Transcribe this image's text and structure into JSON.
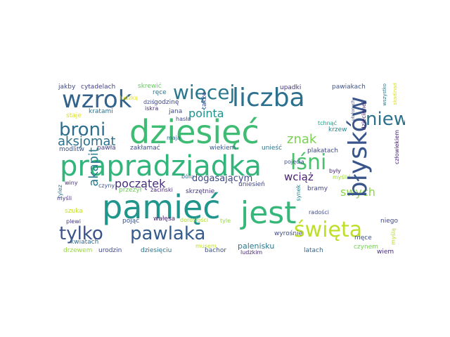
{
  "words": [
    {
      "text": "dziesięć",
      "color": "#3fbc73"
    },
    {
      "text": "prapradziadka",
      "color": "#31b57b"
    },
    {
      "text": "pamięć",
      "color": "#1f958b"
    },
    {
      "text": "jest",
      "color": "#35b779"
    },
    {
      "text": "wzrok",
      "color": "#33638d"
    },
    {
      "text": "liczba",
      "color": "#2d708e"
    },
    {
      "text": "więcej",
      "color": "#2a788e"
    },
    {
      "text": "błysków",
      "color": "#39558c"
    },
    {
      "text": "broni",
      "color": "#2e6e8e"
    },
    {
      "text": "lśni",
      "color": "#4ac16d"
    },
    {
      "text": "niewiadoma",
      "color": "#2d718e"
    },
    {
      "text": "tylko",
      "color": "#3b528b"
    },
    {
      "text": "pawlaka",
      "color": "#365c8d"
    },
    {
      "text": "święta",
      "color": "#bddf26"
    },
    {
      "text": "aksjomat",
      "color": "#2c728e"
    },
    {
      "text": "pointa",
      "color": "#21918c"
    },
    {
      "text": "znak",
      "color": "#7ad151"
    },
    {
      "text": "akapit",
      "color": "#297b8e"
    },
    {
      "text": "początek",
      "color": "#472f7d"
    },
    {
      "text": "dogasającym",
      "color": "#3e4989"
    },
    {
      "text": "wciąż",
      "color": "#482173"
    },
    {
      "text": "swych",
      "color": "#8bd646"
    },
    {
      "text": "palenisku",
      "color": "#2a788e"
    },
    {
      "text": "jakby",
      "color": "#3e4a89"
    },
    {
      "text": "cytadelach",
      "color": "#424086"
    },
    {
      "text": "skrewić",
      "color": "#65cb5e"
    },
    {
      "text": "upadki",
      "color": "#453882"
    },
    {
      "text": "pawiakach",
      "color": "#3b528b"
    },
    {
      "text": "ręce",
      "color": "#2c728e"
    },
    {
      "text": "godzinę",
      "color": "#3f4788"
    },
    {
      "text": "dziś",
      "color": "#3e4c8a"
    },
    {
      "text": "iskra",
      "color": "#472c7a"
    },
    {
      "text": "ludzką",
      "color": "#e5e419"
    },
    {
      "text": "staje",
      "color": "#dde318"
    },
    {
      "text": "kratami",
      "color": "#2c738e"
    },
    {
      "text": "jana",
      "color": "#3e4989"
    },
    {
      "text": "także",
      "color": "#3b528b"
    },
    {
      "text": "hasła",
      "color": "#404688"
    },
    {
      "text": "mają",
      "color": "#306a8e"
    },
    {
      "text": "krzew",
      "color": "#23898e"
    },
    {
      "text": "dziecinnej",
      "color": "#481f70"
    },
    {
      "text": "człowiekiem",
      "color": "#482475"
    },
    {
      "text": "modlitw",
      "color": "#3b528b"
    },
    {
      "text": "pawła",
      "color": "#433e85"
    },
    {
      "text": "zakłamać",
      "color": "#3e4c8a"
    },
    {
      "text": "wiekiem",
      "color": "#38588c"
    },
    {
      "text": "unieść",
      "color": "#2c728e"
    },
    {
      "text": "plakatach",
      "color": "#3f4788"
    },
    {
      "text": "winy",
      "color": "#472f7d"
    },
    {
      "text": "czyny",
      "color": "#3b528b"
    },
    {
      "text": "przeżył",
      "color": "#6ccd5a"
    },
    {
      "text": "bólu",
      "color": "#31678e"
    },
    {
      "text": "żaciński",
      "color": "#482878"
    },
    {
      "text": "skrzętnie",
      "color": "#46337f"
    },
    {
      "text": "uniesień",
      "color": "#3f4788"
    },
    {
      "text": "bramy",
      "color": "#404588"
    },
    {
      "text": "myślić",
      "color": "#a0da39"
    },
    {
      "text": "tylez",
      "color": "#2c728e"
    },
    {
      "text": "myśli",
      "color": "#46307e"
    },
    {
      "text": "szuka",
      "color": "#c8e020"
    },
    {
      "text": "pojąć",
      "color": "#3b528b"
    },
    {
      "text": "wałęsa",
      "color": "#482374"
    },
    {
      "text": "dorosłości",
      "color": "#addc30"
    },
    {
      "text": "tyle",
      "color": "#94d741"
    },
    {
      "text": "radości",
      "color": "#3e4989"
    },
    {
      "text": "pojęcia",
      "color": "#3b528b"
    },
    {
      "text": "były",
      "color": "#482677"
    },
    {
      "text": "synek",
      "color": "#25848e"
    },
    {
      "text": "tchnąć",
      "color": "#1fa287"
    },
    {
      "text": "męce",
      "color": "#3b528b"
    },
    {
      "text": "niego",
      "color": "#3f4788"
    },
    {
      "text": "plewi",
      "color": "#453882"
    },
    {
      "text": "kwiatach",
      "color": "#31688e"
    },
    {
      "text": "wyrośnie",
      "color": "#3e4a89"
    },
    {
      "text": "myślą",
      "color": "#b5de2b"
    },
    {
      "text": "drzewem",
      "color": "#98d83e"
    },
    {
      "text": "urodzin",
      "color": "#3f4788"
    },
    {
      "text": "dziesięciu",
      "color": "#2c728e"
    },
    {
      "text": "musem",
      "color": "#c2df23"
    },
    {
      "text": "bachor",
      "color": "#3b528b"
    },
    {
      "text": "ludzkim",
      "color": "#482878"
    },
    {
      "text": "latach",
      "color": "#31678e"
    },
    {
      "text": "czynem",
      "color": "#73d056"
    },
    {
      "text": "wiem",
      "color": "#472d7b"
    },
    {
      "text": "wszystko",
      "color": "#2a788e"
    },
    {
      "text": "ułożonych",
      "color": "#3b528b"
    },
    {
      "text": "skadinad",
      "color": "#d5e21a"
    }
  ]
}
